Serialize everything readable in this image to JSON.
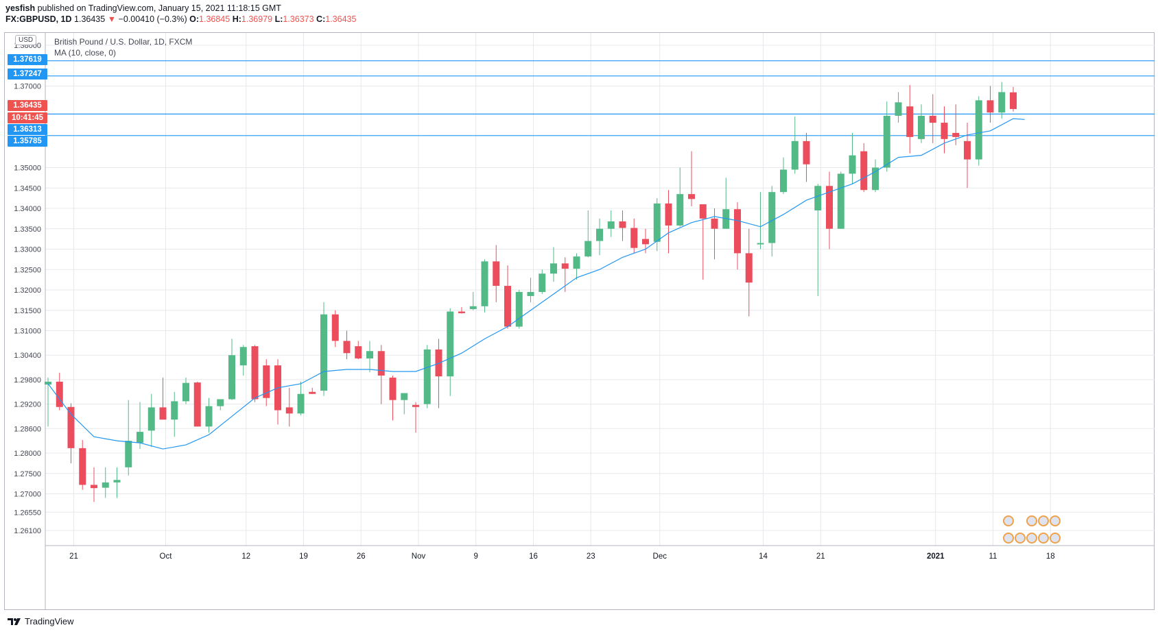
{
  "header": {
    "publisher": "yesfish",
    "published_text": "published on TradingView.com, January 15, 2021 11:18:15 GMT",
    "symbol": "FX:GBPUSD, 1D",
    "last": "1.36435",
    "change_arrow": "▼",
    "change": "−0.00410 (−0.3%)",
    "o_label": "O:",
    "o": "1.36845",
    "h_label": "H:",
    "h": "1.36979",
    "l_label": "L:",
    "l": "1.36373",
    "c_label": "C:",
    "c": "1.36435"
  },
  "legend": {
    "title": "British Pound / U.S. Dollar, 1D, FXCM",
    "indicator": "MA (10, close, 0)"
  },
  "currency_badge": "USD",
  "price_labels": [
    {
      "text": "1.37619",
      "color": "#2196f3"
    },
    {
      "text": "1.37247",
      "color": "#2196f3"
    },
    {
      "text": "1.36435",
      "color": "#ef5350"
    },
    {
      "text": "10:41:45",
      "color": "#ef5350"
    },
    {
      "text": "1.36313",
      "color": "#2196f3"
    },
    {
      "text": "1.35785",
      "color": "#2196f3"
    }
  ],
  "footer": {
    "brand": "TradingView"
  },
  "chart_data": {
    "type": "candlestick",
    "title": "British Pound / U.S. Dollar, 1D, FXCM",
    "ylim": [
      1.2565,
      1.382
    ],
    "y_ticks": [
      "1.38000",
      "1.37000",
      "1.35000",
      "1.34500",
      "1.34000",
      "1.33500",
      "1.33000",
      "1.32500",
      "1.32000",
      "1.31500",
      "1.31000",
      "1.30400",
      "1.29800",
      "1.29200",
      "1.28600",
      "1.28000",
      "1.27500",
      "1.27000",
      "1.26550",
      "1.26100"
    ],
    "x_ticks": [
      {
        "label": "21",
        "idx": 2
      },
      {
        "label": "Oct",
        "idx": 10
      },
      {
        "label": "12",
        "idx": 17
      },
      {
        "label": "19",
        "idx": 22
      },
      {
        "label": "26",
        "idx": 27
      },
      {
        "label": "Nov",
        "idx": 32
      },
      {
        "label": "9",
        "idx": 37
      },
      {
        "label": "16",
        "idx": 42
      },
      {
        "label": "23",
        "idx": 47
      },
      {
        "label": "Dec",
        "idx": 53
      },
      {
        "label": "14",
        "idx": 62
      },
      {
        "label": "21",
        "idx": 67
      },
      {
        "label": "2021",
        "idx": 77,
        "bold": true
      },
      {
        "label": "11",
        "idx": 82
      },
      {
        "label": "18",
        "idx": 87
      }
    ],
    "horizontal_lines": [
      1.37619,
      1.37247,
      1.36313,
      1.35785
    ],
    "colors": {
      "up": "#53b987",
      "down": "#eb4d5c",
      "ma": "#2196f3",
      "hline": "#2196f3"
    },
    "candles": [
      {
        "o": 1.2968,
        "h": 1.2985,
        "l": 1.2865,
        "c": 1.2975
      },
      {
        "o": 1.2975,
        "h": 1.2997,
        "l": 1.2905,
        "c": 1.2913
      },
      {
        "o": 1.2913,
        "h": 1.2922,
        "l": 1.2775,
        "c": 1.2812
      },
      {
        "o": 1.2812,
        "h": 1.2832,
        "l": 1.271,
        "c": 1.2722
      },
      {
        "o": 1.2722,
        "h": 1.2765,
        "l": 1.268,
        "c": 1.2714
      },
      {
        "o": 1.2715,
        "h": 1.2765,
        "l": 1.269,
        "c": 1.2728
      },
      {
        "o": 1.2728,
        "h": 1.2765,
        "l": 1.269,
        "c": 1.2734
      },
      {
        "o": 1.2765,
        "h": 1.293,
        "l": 1.2745,
        "c": 1.283
      },
      {
        "o": 1.2825,
        "h": 1.2925,
        "l": 1.281,
        "c": 1.2852
      },
      {
        "o": 1.2855,
        "h": 1.2945,
        "l": 1.2815,
        "c": 1.2912
      },
      {
        "o": 1.2912,
        "h": 1.2985,
        "l": 1.289,
        "c": 1.2882
      },
      {
        "o": 1.2882,
        "h": 1.295,
        "l": 1.284,
        "c": 1.2927
      },
      {
        "o": 1.2927,
        "h": 1.2985,
        "l": 1.292,
        "c": 1.2972
      },
      {
        "o": 1.2973,
        "h": 1.2975,
        "l": 1.2865,
        "c": 1.2865
      },
      {
        "o": 1.2865,
        "h": 1.2935,
        "l": 1.285,
        "c": 1.2915
      },
      {
        "o": 1.2915,
        "h": 1.2932,
        "l": 1.2905,
        "c": 1.2932
      },
      {
        "o": 1.2932,
        "h": 1.308,
        "l": 1.293,
        "c": 1.304
      },
      {
        "o": 1.3015,
        "h": 1.3065,
        "l": 1.299,
        "c": 1.306
      },
      {
        "o": 1.3062,
        "h": 1.3065,
        "l": 1.2925,
        "c": 1.2932
      },
      {
        "o": 1.3015,
        "h": 1.303,
        "l": 1.2915,
        "c": 1.2935
      },
      {
        "o": 1.3015,
        "h": 1.303,
        "l": 1.287,
        "c": 1.2905
      },
      {
        "o": 1.2912,
        "h": 1.296,
        "l": 1.2865,
        "c": 1.2897
      },
      {
        "o": 1.2897,
        "h": 1.2975,
        "l": 1.2893,
        "c": 1.2945
      },
      {
        "o": 1.295,
        "h": 1.296,
        "l": 1.2945,
        "c": 1.2945
      },
      {
        "o": 1.2953,
        "h": 1.317,
        "l": 1.294,
        "c": 1.314
      },
      {
        "o": 1.314,
        "h": 1.315,
        "l": 1.306,
        "c": 1.3075
      },
      {
        "o": 1.3075,
        "h": 1.31,
        "l": 1.303,
        "c": 1.3045
      },
      {
        "o": 1.3062,
        "h": 1.3075,
        "l": 1.303,
        "c": 1.3032
      },
      {
        "o": 1.3032,
        "h": 1.3075,
        "l": 1.2998,
        "c": 1.305
      },
      {
        "o": 1.305,
        "h": 1.3065,
        "l": 1.292,
        "c": 1.299
      },
      {
        "o": 1.2985,
        "h": 1.299,
        "l": 1.288,
        "c": 1.293
      },
      {
        "o": 1.293,
        "h": 1.2945,
        "l": 1.2895,
        "c": 1.2947
      },
      {
        "o": 1.2918,
        "h": 1.2925,
        "l": 1.285,
        "c": 1.2913
      },
      {
        "o": 1.292,
        "h": 1.3065,
        "l": 1.291,
        "c": 1.3054
      },
      {
        "o": 1.3054,
        "h": 1.308,
        "l": 1.291,
        "c": 1.2988
      },
      {
        "o": 1.2988,
        "h": 1.3155,
        "l": 1.294,
        "c": 1.3147
      },
      {
        "o": 1.3147,
        "h": 1.3158,
        "l": 1.3142,
        "c": 1.3143
      },
      {
        "o": 1.3153,
        "h": 1.3195,
        "l": 1.315,
        "c": 1.316
      },
      {
        "o": 1.316,
        "h": 1.3275,
        "l": 1.3145,
        "c": 1.327
      },
      {
        "o": 1.327,
        "h": 1.331,
        "l": 1.317,
        "c": 1.321
      },
      {
        "o": 1.321,
        "h": 1.326,
        "l": 1.3105,
        "c": 1.311
      },
      {
        "o": 1.311,
        "h": 1.32,
        "l": 1.3105,
        "c": 1.3195
      },
      {
        "o": 1.3185,
        "h": 1.323,
        "l": 1.317,
        "c": 1.3195
      },
      {
        "o": 1.3195,
        "h": 1.325,
        "l": 1.319,
        "c": 1.324
      },
      {
        "o": 1.324,
        "h": 1.3305,
        "l": 1.322,
        "c": 1.3265
      },
      {
        "o": 1.3265,
        "h": 1.328,
        "l": 1.3195,
        "c": 1.3252
      },
      {
        "o": 1.3252,
        "h": 1.329,
        "l": 1.3225,
        "c": 1.3282
      },
      {
        "o": 1.3282,
        "h": 1.3395,
        "l": 1.328,
        "c": 1.332
      },
      {
        "o": 1.332,
        "h": 1.3375,
        "l": 1.3285,
        "c": 1.335
      },
      {
        "o": 1.335,
        "h": 1.3395,
        "l": 1.333,
        "c": 1.3368
      },
      {
        "o": 1.3368,
        "h": 1.3395,
        "l": 1.332,
        "c": 1.3352
      },
      {
        "o": 1.3352,
        "h": 1.3375,
        "l": 1.329,
        "c": 1.3303
      },
      {
        "o": 1.3325,
        "h": 1.335,
        "l": 1.329,
        "c": 1.3312
      },
      {
        "o": 1.3318,
        "h": 1.3425,
        "l": 1.3295,
        "c": 1.3412
      },
      {
        "o": 1.3412,
        "h": 1.3445,
        "l": 1.329,
        "c": 1.3358
      },
      {
        "o": 1.3358,
        "h": 1.35,
        "l": 1.3355,
        "c": 1.3435
      },
      {
        "o": 1.3435,
        "h": 1.354,
        "l": 1.3405,
        "c": 1.3423
      },
      {
        "o": 1.341,
        "h": 1.34,
        "l": 1.3225,
        "c": 1.3375
      },
      {
        "o": 1.3375,
        "h": 1.34,
        "l": 1.3275,
        "c": 1.335
      },
      {
        "o": 1.335,
        "h": 1.3475,
        "l": 1.335,
        "c": 1.3398
      },
      {
        "o": 1.3398,
        "h": 1.3415,
        "l": 1.325,
        "c": 1.329
      },
      {
        "o": 1.329,
        "h": 1.335,
        "l": 1.3135,
        "c": 1.3218
      },
      {
        "o": 1.3315,
        "h": 1.344,
        "l": 1.33,
        "c": 1.3315
      },
      {
        "o": 1.3315,
        "h": 1.3455,
        "l": 1.3282,
        "c": 1.344
      },
      {
        "o": 1.344,
        "h": 1.3525,
        "l": 1.3435,
        "c": 1.3495
      },
      {
        "o": 1.3495,
        "h": 1.3625,
        "l": 1.3485,
        "c": 1.3565
      },
      {
        "o": 1.3565,
        "h": 1.3585,
        "l": 1.3465,
        "c": 1.3508
      },
      {
        "o": 1.3395,
        "h": 1.346,
        "l": 1.3185,
        "c": 1.3455
      },
      {
        "o": 1.3455,
        "h": 1.349,
        "l": 1.33,
        "c": 1.335
      },
      {
        "o": 1.335,
        "h": 1.349,
        "l": 1.335,
        "c": 1.3485
      },
      {
        "o": 1.3485,
        "h": 1.3585,
        "l": 1.346,
        "c": 1.353
      },
      {
        "o": 1.354,
        "h": 1.356,
        "l": 1.344,
        "c": 1.3445
      },
      {
        "o": 1.3445,
        "h": 1.352,
        "l": 1.344,
        "c": 1.35
      },
      {
        "o": 1.35,
        "h": 1.3662,
        "l": 1.349,
        "c": 1.3627
      },
      {
        "o": 1.3627,
        "h": 1.3685,
        "l": 1.361,
        "c": 1.366
      },
      {
        "o": 1.365,
        "h": 1.3702,
        "l": 1.3535,
        "c": 1.3575
      },
      {
        "o": 1.357,
        "h": 1.3655,
        "l": 1.356,
        "c": 1.3627
      },
      {
        "o": 1.3627,
        "h": 1.368,
        "l": 1.356,
        "c": 1.361
      },
      {
        "o": 1.361,
        "h": 1.365,
        "l": 1.3535,
        "c": 1.357
      },
      {
        "o": 1.3585,
        "h": 1.3655,
        "l": 1.3555,
        "c": 1.3575
      },
      {
        "o": 1.3565,
        "h": 1.361,
        "l": 1.345,
        "c": 1.352
      },
      {
        "o": 1.352,
        "h": 1.3675,
        "l": 1.3505,
        "c": 1.3665
      },
      {
        "o": 1.3665,
        "h": 1.37,
        "l": 1.361,
        "c": 1.3635
      },
      {
        "o": 1.3635,
        "h": 1.371,
        "l": 1.362,
        "c": 1.3685
      },
      {
        "o": 1.36845,
        "h": 1.36979,
        "l": 1.36373,
        "c": 1.36435
      }
    ],
    "ma": [
      {
        "i": 0,
        "v": 1.297
      },
      {
        "i": 2,
        "v": 1.2895
      },
      {
        "i": 4,
        "v": 1.284
      },
      {
        "i": 6,
        "v": 1.283
      },
      {
        "i": 8,
        "v": 1.2825
      },
      {
        "i": 10,
        "v": 1.281
      },
      {
        "i": 12,
        "v": 1.282
      },
      {
        "i": 14,
        "v": 1.2845
      },
      {
        "i": 16,
        "v": 1.289
      },
      {
        "i": 18,
        "v": 1.2935
      },
      {
        "i": 20,
        "v": 1.296
      },
      {
        "i": 22,
        "v": 1.297
      },
      {
        "i": 24,
        "v": 1.3
      },
      {
        "i": 26,
        "v": 1.3005
      },
      {
        "i": 28,
        "v": 1.3005
      },
      {
        "i": 30,
        "v": 1.3
      },
      {
        "i": 32,
        "v": 1.3
      },
      {
        "i": 34,
        "v": 1.302
      },
      {
        "i": 36,
        "v": 1.3045
      },
      {
        "i": 38,
        "v": 1.308
      },
      {
        "i": 40,
        "v": 1.311
      },
      {
        "i": 42,
        "v": 1.315
      },
      {
        "i": 44,
        "v": 1.319
      },
      {
        "i": 46,
        "v": 1.323
      },
      {
        "i": 48,
        "v": 1.325
      },
      {
        "i": 50,
        "v": 1.328
      },
      {
        "i": 52,
        "v": 1.33
      },
      {
        "i": 54,
        "v": 1.334
      },
      {
        "i": 56,
        "v": 1.3365
      },
      {
        "i": 58,
        "v": 1.338
      },
      {
        "i": 60,
        "v": 1.337
      },
      {
        "i": 62,
        "v": 1.3355
      },
      {
        "i": 64,
        "v": 1.3385
      },
      {
        "i": 66,
        "v": 1.342
      },
      {
        "i": 68,
        "v": 1.344
      },
      {
        "i": 70,
        "v": 1.346
      },
      {
        "i": 72,
        "v": 1.349
      },
      {
        "i": 74,
        "v": 1.3525
      },
      {
        "i": 76,
        "v": 1.353
      },
      {
        "i": 78,
        "v": 1.356
      },
      {
        "i": 80,
        "v": 1.358
      },
      {
        "i": 82,
        "v": 1.359
      },
      {
        "i": 84,
        "v": 1.362
      },
      {
        "i": 85,
        "v": 1.3618
      }
    ]
  }
}
